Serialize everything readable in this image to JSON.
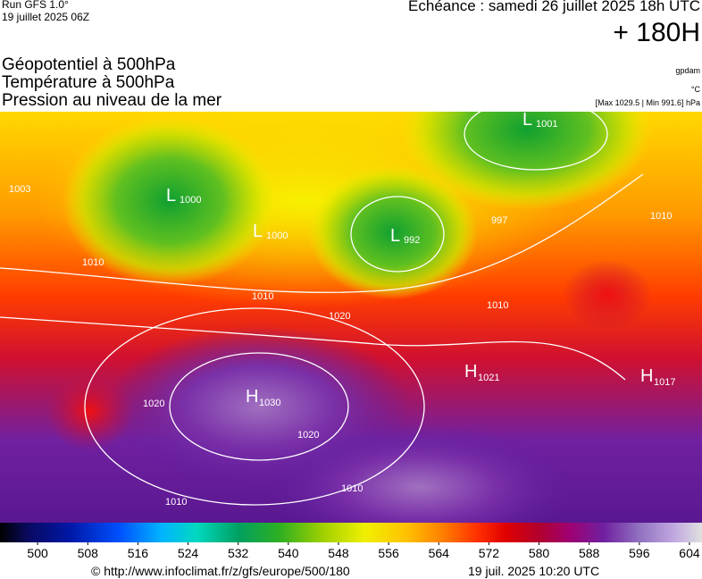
{
  "header": {
    "run": "Run GFS 1.0°",
    "date": "19 juillet 2025 06Z",
    "valid": "Echéance : samedi 26 juillet 2025 18h UTC",
    "lead": "+ 180H",
    "unit_gpdam": "gpdam",
    "unit_temp": "°C",
    "extremes": "[Max 1029.5 | Min 991.6] hPa"
  },
  "titles": [
    "Géopotentiel à 500hPa",
    "Température à 500hPa",
    "Pression au niveau de la mer"
  ],
  "map": {
    "centers": [
      {
        "letter": "L",
        "value": "1001"
      },
      {
        "letter": "L",
        "value": "1000"
      },
      {
        "letter": "L",
        "value": "992"
      },
      {
        "letter": "L",
        "value": "1000"
      },
      {
        "letter": "H",
        "value": "1030"
      },
      {
        "letter": "H",
        "value": "1021"
      },
      {
        "letter": "H",
        "value": "1017"
      }
    ],
    "isobars": [
      "1003",
      "1010",
      "1010",
      "1020",
      "1020",
      "1020",
      "1010",
      "1010",
      "997",
      "1010",
      "1010"
    ]
  },
  "colorbar": {
    "lim": [
      494,
      606
    ],
    "ticks": [
      500,
      508,
      516,
      524,
      532,
      540,
      548,
      556,
      564,
      572,
      580,
      588,
      596,
      604
    ]
  },
  "footer": {
    "source": "© http://www.infoclimat.fr/z/gfs/europe/500/180",
    "generated": "19 juil. 2025 10:20 UTC"
  }
}
